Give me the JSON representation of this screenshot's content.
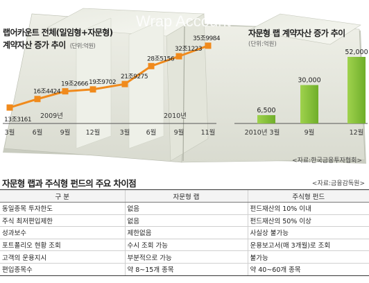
{
  "watermark": "Wrap Account",
  "chart_data": [
    {
      "type": "line",
      "title": "랩어카운트 전체(일임형+자문형)\n계약자산 증가 추이",
      "unit": "(단위:억원)",
      "categories": [
        "3월",
        "6월",
        "9월",
        "12월",
        "3월",
        "6월",
        "9월",
        "11월"
      ],
      "year_labels": [
        "2009년",
        "2010년"
      ],
      "values": [
        133161,
        164424,
        192666,
        199702,
        219275,
        285156,
        321223,
        359984
      ],
      "value_labels": [
        "13조3161",
        "16조4424",
        "19조2666",
        "19조9702",
        "21조9275",
        "28조5156",
        "32조1223",
        "35조9984"
      ],
      "color": "#f08a1c",
      "ylim": [
        90000,
        380000
      ],
      "grid": false
    },
    {
      "type": "bar",
      "title": "자문형 랩 계약자산 증가 추이",
      "unit": "(단위:억원)",
      "categories": [
        "2010년 3월",
        "9월",
        "12월"
      ],
      "values": [
        6500,
        30000,
        52000
      ],
      "value_labels": [
        "6,500",
        "30,000",
        "52,000"
      ],
      "color": "#8dc63f",
      "ylim": [
        0,
        52000
      ],
      "grid": false
    }
  ],
  "chart_source": "<자료:한국금융투자협회>",
  "table": {
    "title": "자문형 랩과 주식형 펀드의 주요 차이점",
    "source": "<자료:금융감독원>",
    "headers": [
      "구      분",
      "자문형 랩",
      "주식형 펀드"
    ],
    "rows": [
      [
        "동일종목 투자한도",
        "없음",
        "펀드재산의 10% 이내"
      ],
      [
        "주식 최저편입제한",
        "없음",
        "펀드재산의 50% 이상"
      ],
      [
        "성과보수",
        "제한없음",
        "사실상 불가능"
      ],
      [
        "포트폴리오 현황 조회",
        "수시 조회 가능",
        "운용보고서(매 3개월)로 조회"
      ],
      [
        "고객의 운용지시",
        "부분적으로 가능",
        "불가능"
      ],
      [
        "편입종목수",
        "약 8~15개 종목",
        "약 40~60개 종목"
      ]
    ]
  }
}
